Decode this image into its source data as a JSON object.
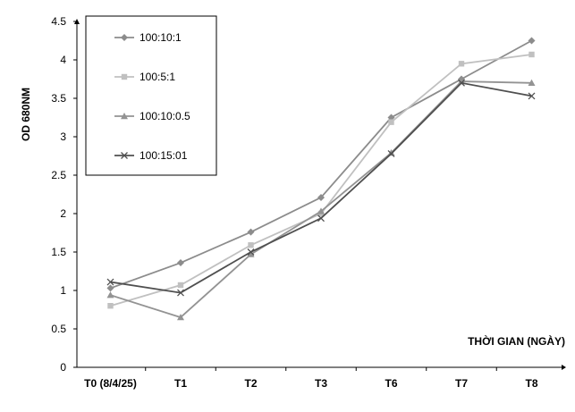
{
  "chart_data": {
    "type": "line",
    "title": "",
    "xlabel": "THỜI GIAN (NGÀY)",
    "ylabel": "OD 680NM",
    "categories": [
      "T0 (8/4/25)",
      "T1",
      "T2",
      "T3",
      "T6",
      "T7",
      "T8"
    ],
    "ylim": [
      0,
      4.5
    ],
    "yticks": [
      "0",
      "0.5",
      "1",
      "1.5",
      "2",
      "2.5",
      "3",
      "3.5",
      "4",
      "4.5"
    ],
    "grid": false,
    "legend_position": "top-left",
    "series": [
      {
        "name": "100:10:1",
        "color": "#8c8c8c",
        "marker": "diamond",
        "values": [
          1.03,
          1.36,
          1.76,
          2.21,
          3.25,
          3.75,
          4.25
        ]
      },
      {
        "name": "100:5:1",
        "color": "#c0c0c0",
        "marker": "square",
        "values": [
          0.8,
          1.07,
          1.59,
          2.0,
          3.19,
          3.95,
          4.07
        ]
      },
      {
        "name": "100:10:0.5",
        "color": "#939393",
        "marker": "triangle",
        "values": [
          0.94,
          0.65,
          1.47,
          2.03,
          2.79,
          3.72,
          3.7
        ]
      },
      {
        "name": "100:15:01",
        "color": "#4f4f4f",
        "marker": "x",
        "values": [
          1.11,
          0.97,
          1.5,
          1.94,
          2.78,
          3.7,
          3.53
        ]
      }
    ]
  }
}
